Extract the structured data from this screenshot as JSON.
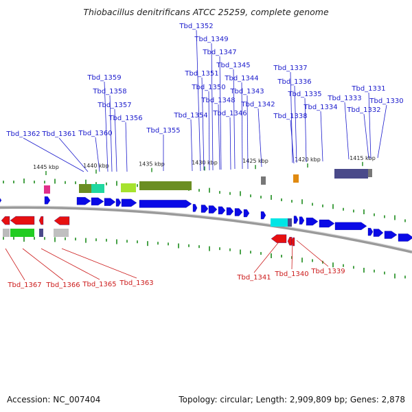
{
  "title": "Thiobacillus denitrificans ATCC 25259, complete genome",
  "footer": {
    "accession": "Accession: NC_007404",
    "topology": "Topology: circular; Length: 2,909,809 bp; Genes: 2,878"
  },
  "kbp_marks": [
    "1445 kbp",
    "1440 kbp",
    "1435 kbp",
    "1430 kbp",
    "1425 kbp",
    "1420 kbp",
    "1415 kbp"
  ],
  "forward_genes": [
    "Tbd_1362",
    "Tbd_1361",
    "Tbd_1360",
    "Tbd_1359",
    "Tbd_1358",
    "Tbd_1357",
    "Tbd_1356",
    "Tbd_1355",
    "Tbd_1354",
    "Tbd_1352",
    "Tbd_1351",
    "Tbd_1349",
    "Tbd_1350",
    "Tbd_1347",
    "Tbd_1348",
    "Tbd_1346",
    "Tbd_1345",
    "Tbd_1344",
    "Tbd_1343",
    "Tbd_1342",
    "Tbd_1338",
    "Tbd_1337",
    "Tbd_1336",
    "Tbd_1335",
    "Tbd_1334",
    "Tbd_1333",
    "Tbd_1332",
    "Tbd_1331",
    "Tbd_1330"
  ],
  "reverse_genes": [
    "Tbd_1367",
    "Tbd_1366",
    "Tbd_1365",
    "Tbd_1363",
    "Tbd_1341",
    "Tbd_1340",
    "Tbd_1339"
  ],
  "colors": {
    "forward_cds": "#0a0ae6",
    "reverse_cds": "#e61010",
    "forward_label": "#1a1acc",
    "reverse_label": "#cc1a1a",
    "tick": "#1a8a1a",
    "backbone": "#999999",
    "olive_feature": "#6b8e23",
    "teal_feature": "#20d8a0",
    "cyan_feature": "#00e5e5",
    "slate_feature": "#4a4a8a",
    "green_feature": "#22cc22",
    "magenta_feature": "#e0308a",
    "orange_feature": "#e08a10",
    "lime_feature": "#a6e22e"
  }
}
